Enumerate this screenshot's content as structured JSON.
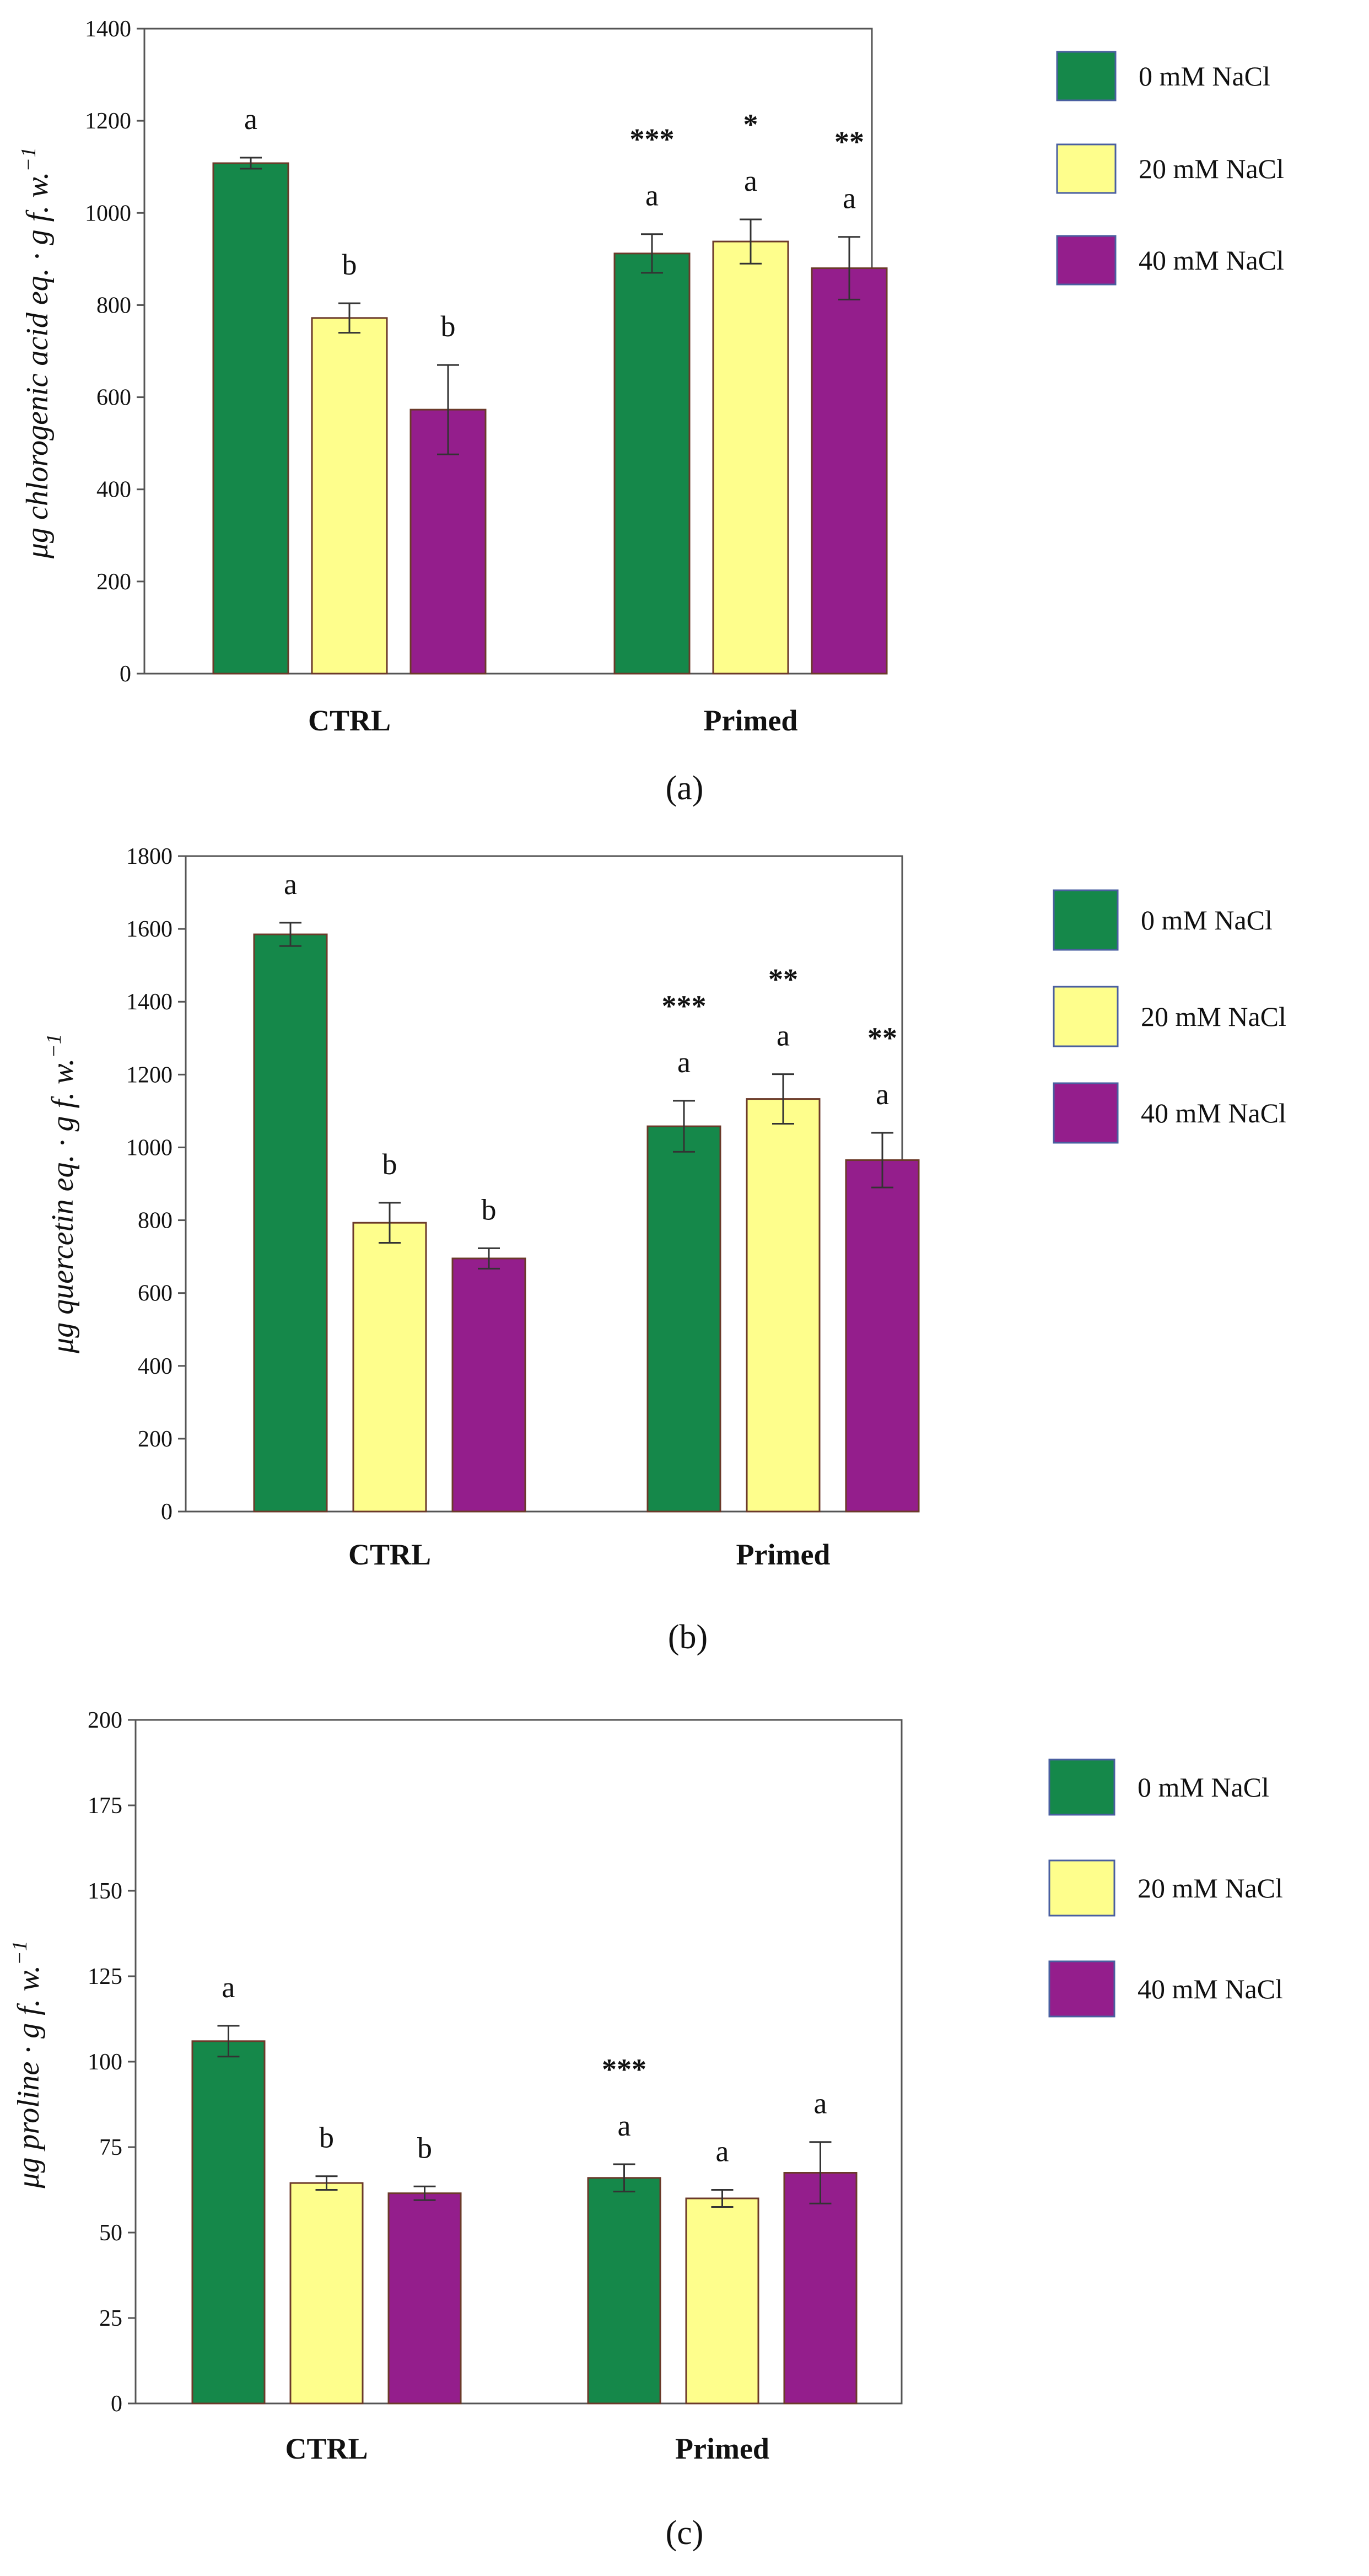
{
  "legend": [
    "0 mM NaCl",
    "20 mM NaCl",
    "40 mM NaCl"
  ],
  "colors": {
    "nacl_0": "#15884A",
    "nacl_20": "#FEFE8C",
    "nacl_40": "#941E8C",
    "axis": "#555555",
    "error": "#333333"
  },
  "chart_data": [
    {
      "type": "bar",
      "panel_label": "(a)",
      "ylabel_main": "μg chlorogenic acid eq. · g f. w.",
      "ylabel_sup": "−1",
      "categories": [
        "CTRL",
        "Primed"
      ],
      "series": [
        {
          "name": "0 mM NaCl",
          "values": [
            1108,
            912
          ],
          "errors": [
            12,
            42
          ],
          "letters": [
            "a",
            "a"
          ],
          "stars": [
            "",
            "***"
          ]
        },
        {
          "name": "20 mM NaCl",
          "values": [
            772,
            938
          ],
          "errors": [
            32,
            48
          ],
          "letters": [
            "b",
            "a"
          ],
          "stars": [
            "",
            "*"
          ]
        },
        {
          "name": "40 mM NaCl",
          "values": [
            573,
            880
          ],
          "errors": [
            97,
            68
          ],
          "letters": [
            "b",
            "a"
          ],
          "stars": [
            "",
            "**"
          ]
        }
      ],
      "ylim": [
        0,
        1400
      ],
      "yticks": [
        "0",
        "200",
        "400",
        "600",
        "800",
        "1000",
        "1200",
        "1400"
      ]
    },
    {
      "type": "bar",
      "panel_label": "(b)",
      "ylabel_main": "μg quercetin eq. · g f. w.",
      "ylabel_sup": "−1",
      "categories": [
        "CTRL",
        "Primed"
      ],
      "series": [
        {
          "name": "0 mM NaCl",
          "values": [
            1585,
            1058
          ],
          "errors": [
            32,
            70
          ],
          "letters": [
            "a",
            "a"
          ],
          "stars": [
            "",
            "***"
          ]
        },
        {
          "name": "20 mM NaCl",
          "values": [
            793,
            1133
          ],
          "errors": [
            55,
            68
          ],
          "letters": [
            "b",
            "a"
          ],
          "stars": [
            "",
            "**"
          ]
        },
        {
          "name": "40 mM NaCl",
          "values": [
            695,
            965
          ],
          "errors": [
            28,
            75
          ],
          "letters": [
            "b",
            "a"
          ],
          "stars": [
            "",
            "**"
          ]
        }
      ],
      "ylim": [
        0,
        1800
      ],
      "yticks": [
        "0",
        "200",
        "400",
        "600",
        "800",
        "1000",
        "1200",
        "1400",
        "1600",
        "1800"
      ]
    },
    {
      "type": "bar",
      "panel_label": "(c)",
      "ylabel_main": "μg proline · g f. w.",
      "ylabel_sup": "−1",
      "categories": [
        "CTRL",
        "Primed"
      ],
      "series": [
        {
          "name": "0 mM NaCl",
          "values": [
            106,
            66
          ],
          "errors": [
            4.5,
            4
          ],
          "letters": [
            "a",
            "a"
          ],
          "stars": [
            "",
            "***"
          ]
        },
        {
          "name": "20 mM NaCl",
          "values": [
            64.5,
            60
          ],
          "errors": [
            2,
            2.5
          ],
          "letters": [
            "b",
            "a"
          ],
          "stars": [
            "",
            ""
          ]
        },
        {
          "name": "40 mM NaCl",
          "values": [
            61.5,
            67.5
          ],
          "errors": [
            2,
            9
          ],
          "letters": [
            "b",
            "a"
          ],
          "stars": [
            "",
            ""
          ]
        }
      ],
      "ylim": [
        0,
        200
      ],
      "yticks": [
        "0",
        "25",
        "50",
        "75",
        "100",
        "125",
        "150",
        "175",
        "200"
      ]
    }
  ]
}
